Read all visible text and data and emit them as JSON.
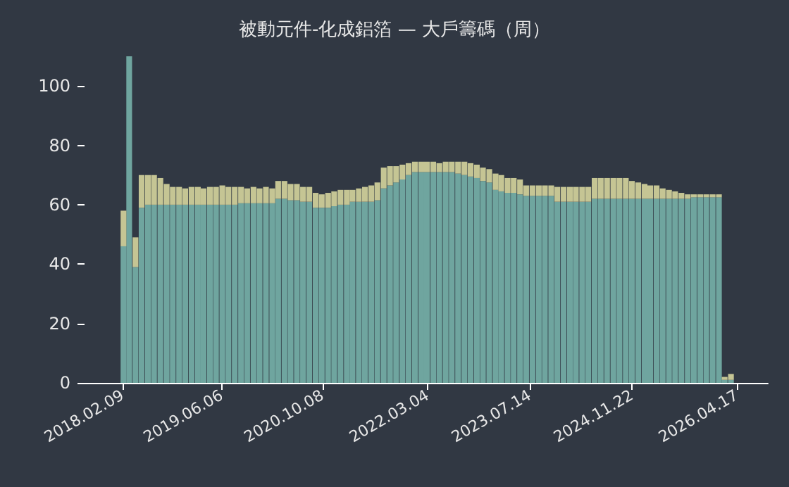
{
  "chart_data": {
    "type": "bar",
    "title": "被動元件-化成鋁箔 — 大戶籌碼（周）",
    "stacked": true,
    "x": [
      "2018-02",
      "2018-03",
      "2018-04",
      "2018-05",
      "2018-06",
      "2018-07",
      "2018-08",
      "2018-09",
      "2018-10",
      "2018-11",
      "2018-12",
      "2019-01",
      "2019-02",
      "2019-03",
      "2019-04",
      "2019-05",
      "2019-06",
      "2019-07",
      "2019-08",
      "2019-09",
      "2019-10",
      "2019-11",
      "2019-12",
      "2020-01",
      "2020-02",
      "2020-03",
      "2020-04",
      "2020-05",
      "2020-06",
      "2020-07",
      "2020-08",
      "2020-09",
      "2020-10",
      "2020-11",
      "2020-12",
      "2021-01",
      "2021-02",
      "2021-03",
      "2021-04",
      "2021-05",
      "2021-06",
      "2021-07",
      "2021-08",
      "2021-09",
      "2021-10",
      "2021-11",
      "2021-12",
      "2022-01",
      "2022-02",
      "2022-03",
      "2022-04",
      "2022-05",
      "2022-06",
      "2022-07",
      "2022-08",
      "2022-09",
      "2022-10",
      "2022-11",
      "2022-12",
      "2023-01",
      "2023-02",
      "2023-03",
      "2023-04",
      "2023-05",
      "2023-06",
      "2023-07",
      "2023-08",
      "2023-09",
      "2023-10",
      "2023-11",
      "2023-12",
      "2024-01",
      "2024-02",
      "2024-03",
      "2024-04",
      "2024-05",
      "2024-06",
      "2024-07",
      "2024-08",
      "2024-09",
      "2024-10",
      "2024-11",
      "2024-12",
      "2025-01",
      "2025-02",
      "2025-03",
      "2025-04",
      "2025-05",
      "2025-06",
      "2025-07",
      "2025-08",
      "2025-09",
      "2025-10",
      "2025-11",
      "2025-12",
      "2026-01",
      "2026-02",
      "2026-03",
      "2026-04"
    ],
    "series": [
      {
        "color": "#6fa59f",
        "values": [
          46,
          110,
          39,
          59,
          60,
          60,
          60,
          60,
          60,
          60,
          60,
          60,
          60,
          60,
          60,
          60,
          60,
          60,
          60,
          60.5,
          60.5,
          60.5,
          60.5,
          60.5,
          60.5,
          62,
          62,
          61.5,
          61.5,
          61,
          61,
          59,
          59,
          59,
          59.5,
          60,
          60,
          61,
          61,
          61,
          61,
          61.5,
          65.5,
          66.5,
          67.5,
          68.5,
          70,
          71,
          71,
          71,
          71,
          71,
          71,
          71,
          70.5,
          70,
          69.5,
          69,
          68,
          67.5,
          65,
          64.5,
          64,
          64,
          63.5,
          63,
          63,
          63,
          63,
          63,
          61,
          61,
          61,
          61,
          61,
          61,
          62,
          62,
          62,
          62,
          62,
          62,
          62,
          62,
          62,
          62,
          62,
          62,
          62,
          62,
          62,
          62,
          62.5,
          62.5,
          62.5,
          62.5,
          62.5,
          1,
          1
        ]
      },
      {
        "color": "#c5c594",
        "values": [
          12,
          0,
          10,
          11,
          10,
          10,
          9,
          7,
          6,
          6,
          5.5,
          6,
          6,
          5.5,
          6,
          6,
          6.5,
          6,
          6,
          5.5,
          5,
          5.5,
          5,
          5.5,
          5,
          6,
          6,
          5.5,
          5.5,
          5,
          5,
          5,
          4.5,
          5,
          5,
          5,
          5,
          4,
          4.5,
          5,
          5.5,
          6,
          7,
          6.5,
          5.5,
          5,
          4,
          3.5,
          3.5,
          3.5,
          3.5,
          3,
          3.5,
          3.5,
          4,
          4.5,
          4.5,
          4.5,
          4.5,
          4.5,
          5.5,
          5.5,
          5,
          5,
          5,
          3.5,
          3.5,
          3.5,
          3.5,
          3.5,
          5,
          5,
          5,
          5,
          5,
          5,
          7,
          7,
          7,
          7,
          7,
          7,
          6,
          5.5,
          5,
          4.5,
          4.5,
          3.5,
          3,
          2.5,
          2,
          1.5,
          1,
          1,
          1,
          1,
          1,
          1,
          2
        ]
      }
    ],
    "xlim": [
      "2017-08-08",
      "2026-09-15"
    ],
    "xticks": [
      {
        "value": "2018-02-09",
        "label": "2018.02.09"
      },
      {
        "value": "2019-06-06",
        "label": "2019.06.06"
      },
      {
        "value": "2020-10-08",
        "label": "2020.10.08"
      },
      {
        "value": "2022-03-04",
        "label": "2022.03.04"
      },
      {
        "value": "2023-07-14",
        "label": "2023.07.14"
      },
      {
        "value": "2024-11-22",
        "label": "2024.11.22"
      },
      {
        "value": "2026-04-17",
        "label": "2026.04.17"
      }
    ],
    "ylim": [
      0,
      110
    ],
    "yticks": [
      0,
      20,
      40,
      60,
      80,
      100
    ],
    "grid": false
  }
}
